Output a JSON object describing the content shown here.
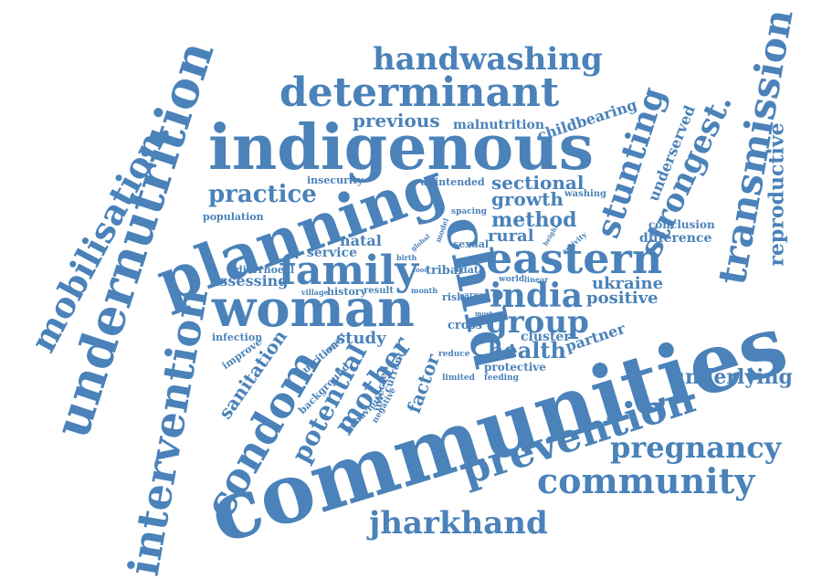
{
  "word_color": "#4a82b9",
  "background": "#ffffff",
  "words": [
    {
      "id": "communities",
      "text": "communities"
    },
    {
      "id": "indigenous",
      "text": "indigenous"
    },
    {
      "id": "planning",
      "text": "planning"
    },
    {
      "id": "woman",
      "text": "woman"
    },
    {
      "id": "undernutrition",
      "text": "undernutrition"
    },
    {
      "id": "intervention",
      "text": "intervention"
    },
    {
      "id": "transmission",
      "text": "transmission"
    },
    {
      "id": "child",
      "text": "child"
    },
    {
      "id": "determinant",
      "text": "determinant"
    },
    {
      "id": "handwashing",
      "text": "handwashing"
    },
    {
      "id": "mobilisation",
      "text": "mobilisation."
    },
    {
      "id": "prevention",
      "text": "prevention"
    },
    {
      "id": "community",
      "text": "community"
    },
    {
      "id": "pregnancy",
      "text": "pregnancy"
    },
    {
      "id": "jharkhand",
      "text": "jharkhand"
    },
    {
      "id": "condom",
      "text": "condom"
    },
    {
      "id": "family",
      "text": "family"
    },
    {
      "id": "eastern",
      "text": "eastern"
    },
    {
      "id": "india",
      "text": "india"
    },
    {
      "id": "group",
      "text": "group"
    },
    {
      "id": "stunting",
      "text": "stunting"
    },
    {
      "id": "strongest",
      "text": "strongest."
    },
    {
      "id": "reproductive",
      "text": "reproductive"
    },
    {
      "id": "underserved",
      "text": "underserved"
    },
    {
      "id": "mother",
      "text": "mother"
    },
    {
      "id": "potential",
      "text": "potential"
    },
    {
      "id": "sanitation",
      "text": "sanitation"
    },
    {
      "id": "practice",
      "text": "practice"
    },
    {
      "id": "previous",
      "text": "previous"
    },
    {
      "id": "malnutrition",
      "text": "malnutrition"
    },
    {
      "id": "childbearing",
      "text": "childbearing"
    },
    {
      "id": "sectional",
      "text": "sectional"
    },
    {
      "id": "growth",
      "text": "growth"
    },
    {
      "id": "method",
      "text": "method"
    },
    {
      "id": "rural",
      "text": "rural"
    },
    {
      "id": "health",
      "text": "health"
    },
    {
      "id": "underlying",
      "text": "underlying"
    },
    {
      "id": "ukraine",
      "text": "ukraine"
    },
    {
      "id": "positive",
      "text": "positive"
    },
    {
      "id": "difference",
      "text": "difference"
    },
    {
      "id": "conclusion",
      "text": "conclusion"
    },
    {
      "id": "partner",
      "text": "partner"
    },
    {
      "id": "cluster",
      "text": "cluster"
    },
    {
      "id": "protective",
      "text": "protective"
    },
    {
      "id": "factor",
      "text": "factor"
    },
    {
      "id": "study",
      "text": "study"
    },
    {
      "id": "natal",
      "text": "natal"
    },
    {
      "id": "service",
      "text": "service"
    },
    {
      "id": "assessing",
      "text": "assessing"
    },
    {
      "id": "population",
      "text": "population"
    },
    {
      "id": "insecurity",
      "text": "insecurity"
    },
    {
      "id": "unintended",
      "text": "unintended"
    },
    {
      "id": "diarrhoeal",
      "text": "diarrhoeal"
    },
    {
      "id": "infection",
      "text": "infection"
    },
    {
      "id": "improve",
      "text": "improve"
    },
    {
      "id": "nutrition",
      "text": "nutrition"
    },
    {
      "id": "background",
      "text": "background"
    },
    {
      "id": "tribal",
      "text": "tribal"
    },
    {
      "id": "sexual",
      "text": "sexual"
    },
    {
      "id": "cross",
      "text": "cross"
    },
    {
      "id": "risk",
      "text": "risk"
    },
    {
      "id": "data",
      "text": "data"
    },
    {
      "id": "history",
      "text": "history"
    },
    {
      "id": "result",
      "text": "result"
    },
    {
      "id": "village",
      "text": "village"
    },
    {
      "id": "washing",
      "text": "washing"
    },
    {
      "id": "spacing",
      "text": "spacing"
    },
    {
      "id": "world",
      "text": "world"
    },
    {
      "id": "linear",
      "text": "linear"
    },
    {
      "id": "feeding",
      "text": "feeding"
    },
    {
      "id": "reduce",
      "text": "reduce"
    },
    {
      "id": "limited",
      "text": "limited"
    },
    {
      "id": "infected",
      "text": "infected"
    },
    {
      "id": "current",
      "text": "current"
    },
    {
      "id": "negative",
      "text": "negative"
    },
    {
      "id": "behaviour",
      "text": "behaviour"
    },
    {
      "id": "impact",
      "text": "impact"
    },
    {
      "id": "area",
      "text": "area"
    },
    {
      "id": "month",
      "text": "month"
    },
    {
      "id": "birth",
      "text": "birth"
    },
    {
      "id": "food",
      "text": "food"
    },
    {
      "id": "global",
      "text": "global"
    },
    {
      "id": "model",
      "text": "model"
    },
    {
      "id": "activity",
      "text": "activity"
    },
    {
      "id": "height",
      "text": "height"
    },
    {
      "id": "most",
      "text": "most"
    }
  ]
}
